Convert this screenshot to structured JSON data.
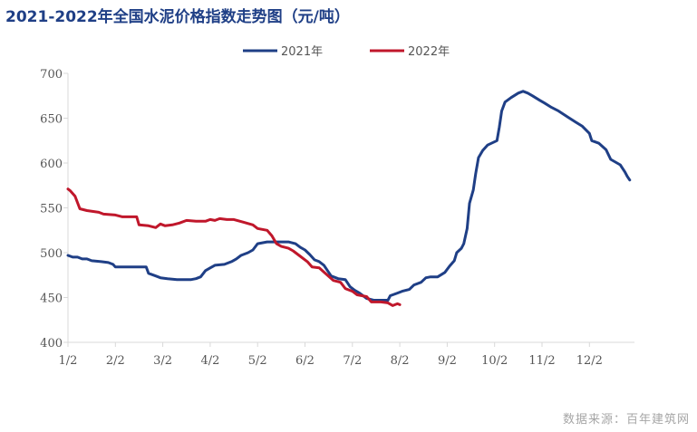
{
  "title": "2021-2022年全国水泥价格指数走势图（元/吨）",
  "source": "数据来源：百年建筑网",
  "chart_data": {
    "type": "line",
    "title": "2021-2022年全国水泥价格指数走势图（元/吨）",
    "xlabel": "",
    "ylabel": "",
    "ylim": [
      400,
      700
    ],
    "yticks": [
      400,
      450,
      500,
      550,
      600,
      650,
      700
    ],
    "x_ticks": [
      "1/2",
      "2/2",
      "3/2",
      "4/2",
      "5/2",
      "6/2",
      "7/2",
      "8/2",
      "9/2",
      "10/2",
      "11/2",
      "12/2"
    ],
    "x_unit": "month index from Jan 2 (0 = 1/2, 11 = 12/2)",
    "grid": false,
    "legend_position": "top-center",
    "series": [
      {
        "name": "2021年",
        "color": "#1f3f86",
        "points": [
          [
            0.0,
            497
          ],
          [
            0.1,
            495
          ],
          [
            0.2,
            495
          ],
          [
            0.3,
            493
          ],
          [
            0.4,
            493
          ],
          [
            0.5,
            491
          ],
          [
            0.7,
            490
          ],
          [
            0.85,
            489
          ],
          [
            0.95,
            487
          ],
          [
            1.0,
            484
          ],
          [
            1.3,
            484
          ],
          [
            1.6,
            484
          ],
          [
            1.65,
            484
          ],
          [
            1.7,
            477
          ],
          [
            1.85,
            474
          ],
          [
            1.95,
            472
          ],
          [
            2.1,
            471
          ],
          [
            2.3,
            470
          ],
          [
            2.6,
            470
          ],
          [
            2.7,
            471
          ],
          [
            2.8,
            473
          ],
          [
            2.9,
            480
          ],
          [
            3.0,
            483
          ],
          [
            3.1,
            486
          ],
          [
            3.3,
            487
          ],
          [
            3.45,
            490
          ],
          [
            3.55,
            493
          ],
          [
            3.65,
            497
          ],
          [
            3.8,
            500
          ],
          [
            3.9,
            503
          ],
          [
            4.0,
            510
          ],
          [
            4.1,
            511
          ],
          [
            4.2,
            512
          ],
          [
            4.35,
            512
          ],
          [
            4.5,
            512
          ],
          [
            4.65,
            512
          ],
          [
            4.8,
            510
          ],
          [
            4.9,
            506
          ],
          [
            5.0,
            503
          ],
          [
            5.1,
            498
          ],
          [
            5.2,
            492
          ],
          [
            5.3,
            490
          ],
          [
            5.4,
            486
          ],
          [
            5.55,
            474
          ],
          [
            5.7,
            471
          ],
          [
            5.85,
            470
          ],
          [
            5.95,
            462
          ],
          [
            6.05,
            458
          ],
          [
            6.15,
            455
          ],
          [
            6.3,
            449
          ],
          [
            6.45,
            447
          ],
          [
            6.65,
            447
          ],
          [
            6.75,
            447
          ],
          [
            6.8,
            452
          ],
          [
            6.95,
            455
          ],
          [
            7.05,
            457
          ],
          [
            7.2,
            459
          ],
          [
            7.3,
            464
          ],
          [
            7.45,
            467
          ],
          [
            7.55,
            472
          ],
          [
            7.65,
            473
          ],
          [
            7.8,
            473
          ],
          [
            7.95,
            478
          ],
          [
            8.05,
            485
          ],
          [
            8.15,
            491
          ],
          [
            8.2,
            500
          ],
          [
            8.3,
            505
          ],
          [
            8.35,
            510
          ],
          [
            8.42,
            527
          ],
          [
            8.47,
            555
          ],
          [
            8.55,
            570
          ],
          [
            8.6,
            588
          ],
          [
            8.66,
            606
          ],
          [
            8.75,
            614
          ],
          [
            8.85,
            620
          ],
          [
            9.05,
            625
          ],
          [
            9.1,
            640
          ],
          [
            9.15,
            658
          ],
          [
            9.22,
            668
          ],
          [
            9.35,
            673
          ],
          [
            9.5,
            678
          ],
          [
            9.6,
            680
          ],
          [
            9.7,
            678
          ],
          [
            9.8,
            675
          ],
          [
            9.95,
            670
          ],
          [
            10.05,
            667
          ],
          [
            10.2,
            662
          ],
          [
            10.35,
            658
          ],
          [
            10.55,
            651
          ],
          [
            10.7,
            646
          ],
          [
            10.85,
            641
          ],
          [
            11.0,
            633
          ],
          [
            11.05,
            625
          ],
          [
            11.2,
            622
          ],
          [
            11.35,
            615
          ],
          [
            11.45,
            604
          ],
          [
            11.65,
            598
          ],
          [
            11.75,
            590
          ],
          [
            11.8,
            585
          ],
          [
            11.85,
            581
          ]
        ]
      },
      {
        "name": "2022年",
        "color": "#c0172b",
        "points": [
          [
            0.0,
            571
          ],
          [
            0.05,
            569
          ],
          [
            0.15,
            563
          ],
          [
            0.25,
            549
          ],
          [
            0.4,
            547
          ],
          [
            0.65,
            545
          ],
          [
            0.75,
            543
          ],
          [
            1.0,
            542
          ],
          [
            1.15,
            540
          ],
          [
            1.35,
            540
          ],
          [
            1.45,
            540
          ],
          [
            1.5,
            531
          ],
          [
            1.7,
            530
          ],
          [
            1.85,
            528
          ],
          [
            1.95,
            532
          ],
          [
            2.05,
            530
          ],
          [
            2.2,
            531
          ],
          [
            2.35,
            533
          ],
          [
            2.5,
            536
          ],
          [
            2.7,
            535
          ],
          [
            2.9,
            535
          ],
          [
            3.0,
            537
          ],
          [
            3.1,
            536
          ],
          [
            3.2,
            538
          ],
          [
            3.35,
            537
          ],
          [
            3.5,
            537
          ],
          [
            3.7,
            534
          ],
          [
            3.9,
            531
          ],
          [
            4.0,
            527
          ],
          [
            4.2,
            525
          ],
          [
            4.3,
            519
          ],
          [
            4.4,
            510
          ],
          [
            4.5,
            507
          ],
          [
            4.65,
            505
          ],
          [
            4.75,
            502
          ],
          [
            4.9,
            496
          ],
          [
            5.05,
            490
          ],
          [
            5.15,
            484
          ],
          [
            5.3,
            483
          ],
          [
            5.45,
            476
          ],
          [
            5.6,
            469
          ],
          [
            5.75,
            467
          ],
          [
            5.85,
            460
          ],
          [
            6.0,
            457
          ],
          [
            6.1,
            453
          ],
          [
            6.3,
            451
          ],
          [
            6.4,
            445
          ],
          [
            6.6,
            445
          ],
          [
            6.75,
            444
          ],
          [
            6.85,
            441
          ],
          [
            6.95,
            443
          ],
          [
            7.0,
            442
          ]
        ]
      }
    ]
  }
}
